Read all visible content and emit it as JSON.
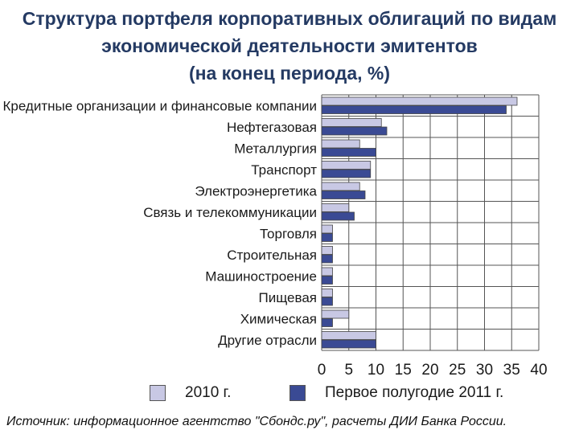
{
  "title": {
    "line1": "Структура портфеля корпоративных облигаций по видам",
    "line2": "экономической деятельности эмитентов",
    "line3": "(на конец периода, %)"
  },
  "colors": {
    "series2010": "#c8c8e4",
    "series2011": "#3a4a94",
    "grid": "#555555"
  },
  "source": "Источник: информационное агентство \"Сбондс.ру\", расчеты ДИИ Банка России.",
  "chart_data": {
    "type": "bar",
    "orientation": "horizontal",
    "title": "Структура портфеля корпоративных облигаций по видам экономической деятельности эмитентов (на конец периода, %)",
    "categories": [
      "Кредитные организации и финансовые компании",
      "Нефтегазовая",
      "Металлургия",
      "Транспорт",
      "Электроэнергетика",
      "Связь и телекоммуникации",
      "Торговля",
      "Строительная",
      "Машиностроение",
      "Пищевая",
      "Химическая",
      "Другие отрасли"
    ],
    "series": [
      {
        "name": "2010 г.",
        "values": [
          36,
          11,
          7,
          9,
          7,
          5,
          2,
          2,
          2,
          2,
          5,
          10
        ]
      },
      {
        "name": "Первое полугодие 2011 г.",
        "values": [
          34,
          12,
          10,
          9,
          8,
          6,
          2,
          2,
          2,
          2,
          2,
          10
        ]
      }
    ],
    "xlim": [
      0,
      40
    ],
    "xticks": [
      "0",
      "5",
      "10",
      "15",
      "20",
      "25",
      "30",
      "35",
      "40"
    ],
    "grid": true,
    "legend": "bottom"
  }
}
